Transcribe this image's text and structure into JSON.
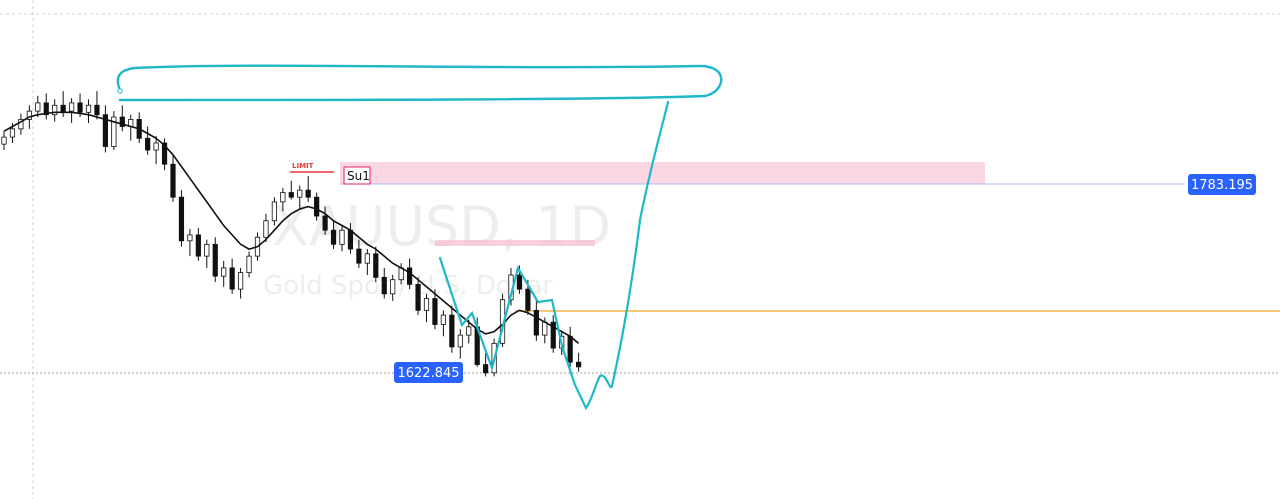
{
  "chart_data": {
    "type": "candlestick",
    "symbol_watermark": "XAUUSD, 1D",
    "description_watermark": "Gold Spot / U.S. Dollar",
    "ylim": [
      1560,
      1900
    ],
    "grid": true,
    "candles": [
      [
        1817,
        1828,
        1812,
        1823
      ],
      [
        1823,
        1835,
        1818,
        1830
      ],
      [
        1830,
        1843,
        1825,
        1838
      ],
      [
        1838,
        1850,
        1830,
        1845
      ],
      [
        1845,
        1858,
        1840,
        1852
      ],
      [
        1852,
        1860,
        1838,
        1842
      ],
      [
        1842,
        1855,
        1836,
        1850
      ],
      [
        1850,
        1862,
        1840,
        1845
      ],
      [
        1845,
        1856,
        1835,
        1852
      ],
      [
        1852,
        1860,
        1840,
        1844
      ],
      [
        1844,
        1855,
        1835,
        1850
      ],
      [
        1850,
        1862,
        1838,
        1842
      ],
      [
        1842,
        1850,
        1810,
        1815
      ],
      [
        1815,
        1845,
        1812,
        1840
      ],
      [
        1840,
        1850,
        1828,
        1832
      ],
      [
        1832,
        1842,
        1820,
        1838
      ],
      [
        1838,
        1844,
        1818,
        1822
      ],
      [
        1822,
        1832,
        1808,
        1812
      ],
      [
        1812,
        1824,
        1800,
        1818
      ],
      [
        1818,
        1822,
        1795,
        1800
      ],
      [
        1800,
        1808,
        1768,
        1772
      ],
      [
        1772,
        1778,
        1730,
        1735
      ],
      [
        1735,
        1745,
        1722,
        1740
      ],
      [
        1740,
        1746,
        1718,
        1722
      ],
      [
        1722,
        1736,
        1712,
        1732
      ],
      [
        1732,
        1738,
        1700,
        1705
      ],
      [
        1705,
        1718,
        1696,
        1712
      ],
      [
        1712,
        1720,
        1690,
        1694
      ],
      [
        1694,
        1712,
        1686,
        1708
      ],
      [
        1708,
        1726,
        1704,
        1722
      ],
      [
        1722,
        1742,
        1718,
        1738
      ],
      [
        1738,
        1758,
        1734,
        1752
      ],
      [
        1752,
        1772,
        1748,
        1768
      ],
      [
        1768,
        1780,
        1760,
        1776
      ],
      [
        1776,
        1786,
        1770,
        1772
      ],
      [
        1772,
        1782,
        1762,
        1778
      ],
      [
        1778,
        1790,
        1768,
        1772
      ],
      [
        1772,
        1776,
        1752,
        1756
      ],
      [
        1756,
        1764,
        1740,
        1744
      ],
      [
        1744,
        1752,
        1728,
        1732
      ],
      [
        1732,
        1748,
        1726,
        1744
      ],
      [
        1744,
        1750,
        1724,
        1728
      ],
      [
        1728,
        1736,
        1712,
        1716
      ],
      [
        1716,
        1728,
        1706,
        1724
      ],
      [
        1724,
        1730,
        1700,
        1704
      ],
      [
        1704,
        1712,
        1686,
        1690
      ],
      [
        1690,
        1706,
        1684,
        1702
      ],
      [
        1702,
        1716,
        1698,
        1712
      ],
      [
        1712,
        1720,
        1694,
        1698
      ],
      [
        1698,
        1704,
        1672,
        1676
      ],
      [
        1676,
        1690,
        1666,
        1686
      ],
      [
        1686,
        1694,
        1660,
        1664
      ],
      [
        1664,
        1676,
        1654,
        1672
      ],
      [
        1672,
        1680,
        1640,
        1645
      ],
      [
        1645,
        1660,
        1635,
        1655
      ],
      [
        1655,
        1668,
        1648,
        1662
      ],
      [
        1662,
        1670,
        1628,
        1630
      ],
      [
        1630,
        1640,
        1620,
        1623
      ],
      [
        1623,
        1652,
        1620,
        1648
      ],
      [
        1648,
        1690,
        1645,
        1685
      ],
      [
        1685,
        1712,
        1680,
        1706
      ],
      [
        1706,
        1714,
        1690,
        1694
      ],
      [
        1694,
        1702,
        1672,
        1676
      ],
      [
        1676,
        1686,
        1650,
        1655
      ],
      [
        1655,
        1670,
        1648,
        1666
      ],
      [
        1666,
        1672,
        1640,
        1644
      ],
      [
        1644,
        1658,
        1638,
        1654
      ],
      [
        1654,
        1662,
        1628,
        1632
      ],
      [
        1632,
        1640,
        1624,
        1628
      ]
    ],
    "moving_average": [
      1828,
      1832,
      1836,
      1840,
      1842,
      1843,
      1844,
      1844,
      1844,
      1843,
      1842,
      1840,
      1838,
      1836,
      1834,
      1832,
      1830,
      1826,
      1822,
      1816,
      1808,
      1798,
      1788,
      1778,
      1768,
      1758,
      1748,
      1740,
      1732,
      1728,
      1730,
      1736,
      1744,
      1752,
      1758,
      1762,
      1764,
      1762,
      1758,
      1752,
      1748,
      1744,
      1738,
      1732,
      1728,
      1722,
      1716,
      1712,
      1708,
      1702,
      1696,
      1690,
      1684,
      1678,
      1672,
      1666,
      1660,
      1656,
      1658,
      1664,
      1672,
      1676,
      1674,
      1670,
      1666,
      1662,
      1658,
      1654,
      1648
    ],
    "horizontal_levels": [
      {
        "price": 1783.195,
        "label": "1783.195",
        "color": "#aab8ff"
      },
      {
        "price": 1666,
        "label": "",
        "color": "#f5a623"
      },
      {
        "price": 1622.845,
        "label": "1622.845",
        "color": "#9e9e9e"
      }
    ],
    "zones": [
      {
        "label": "Su1",
        "price_top": 1798,
        "price_bottom": 1780,
        "color": "#f8bbd0"
      },
      {
        "label": "",
        "price_top": 1732,
        "price_bottom": 1727,
        "color": "#f8bbd0"
      }
    ],
    "order_marker": "LIMIT",
    "price_tags": [
      {
        "text": "1783.195",
        "color": "#2962ff"
      },
      {
        "text": "1622.845",
        "color": "#2962ff"
      }
    ]
  }
}
